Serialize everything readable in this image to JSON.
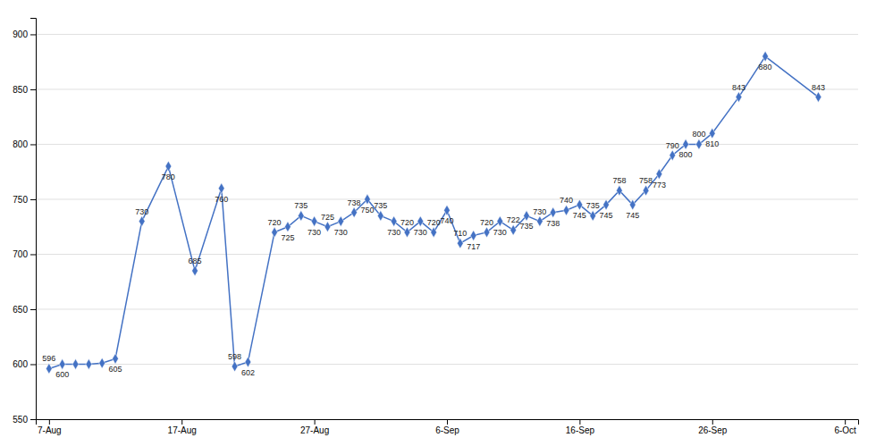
{
  "chart_data": {
    "type": "line",
    "x": [
      0,
      1,
      2,
      3,
      4,
      5,
      7,
      9,
      11,
      13,
      14,
      15,
      17,
      18,
      19,
      20,
      21,
      22,
      23,
      24,
      25,
      26,
      27,
      28,
      29,
      30,
      31,
      32,
      33,
      34,
      35,
      36,
      37,
      38,
      39,
      40,
      41,
      42,
      43,
      44,
      45,
      46,
      47,
      48,
      49,
      50,
      52,
      54,
      58
    ],
    "values": [
      596,
      600,
      600,
      600,
      601,
      605,
      730,
      780,
      685,
      760,
      598,
      602,
      720,
      725,
      735,
      730,
      725,
      730,
      738,
      750,
      735,
      730,
      720,
      730,
      720,
      740,
      710,
      717,
      720,
      730,
      722,
      735,
      730,
      738,
      740,
      745,
      735,
      745,
      758,
      745,
      758,
      773,
      790,
      800,
      800,
      810,
      843,
      880,
      843
    ],
    "value_labels": [
      "596",
      "600",
      null,
      null,
      null,
      "605",
      "730",
      "780",
      "685",
      "760",
      "598",
      "602",
      "720",
      "725",
      "735",
      "730",
      "725",
      "730",
      "738",
      "750",
      "735",
      "730",
      "720",
      "730",
      "720",
      "740",
      "710",
      "717",
      "720",
      "730",
      "722",
      "735",
      "730",
      "738",
      "740",
      "745",
      "735",
      "745",
      "758",
      "745",
      "758",
      "773",
      "790",
      "800",
      "800",
      "810",
      "843",
      "880",
      "843"
    ],
    "data_labels": true,
    "color": "#4472c4",
    "marker": "diamond",
    "xlim": [
      -1,
      61
    ],
    "xticks": [
      {
        "value": 0,
        "label": "7-Aug"
      },
      {
        "value": 10,
        "label": "17-Aug"
      },
      {
        "value": 20,
        "label": "27-Aug"
      },
      {
        "value": 30,
        "label": "6-Sep"
      },
      {
        "value": 40,
        "label": "16-Sep"
      },
      {
        "value": 50,
        "label": "26-Sep"
      },
      {
        "value": 60,
        "label": "6-Oct"
      }
    ],
    "ylim": [
      550,
      915
    ],
    "yticks": [
      550,
      600,
      650,
      700,
      750,
      800,
      850,
      900
    ],
    "grid": true
  }
}
